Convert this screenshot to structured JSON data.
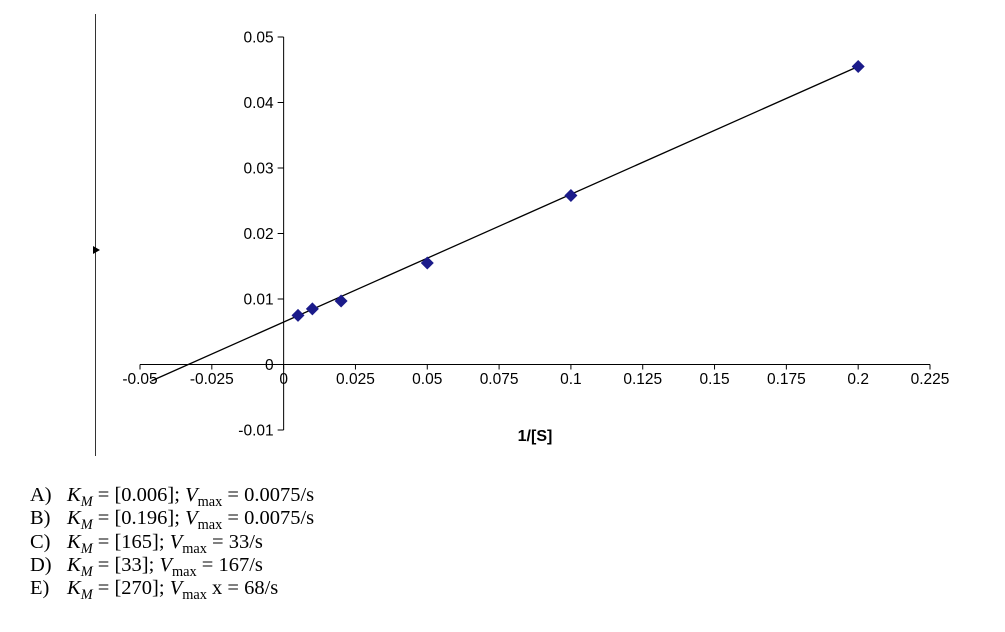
{
  "chart_data": {
    "type": "scatter",
    "title": "",
    "xlabel": "1/[S]",
    "ylabel": "",
    "x": [
      0.005,
      0.01,
      0.02,
      0.05,
      0.1,
      0.2
    ],
    "y": [
      0.0075,
      0.0085,
      0.0097,
      0.0155,
      0.0258,
      0.0455
    ],
    "trendline": {
      "x1": -0.046,
      "y1": -0.0025,
      "x2": 0.2,
      "y2": 0.0455
    },
    "xlim": [
      -0.05,
      0.225
    ],
    "ylim": [
      -0.01,
      0.05
    ],
    "xticks": [
      -0.05,
      -0.025,
      0,
      0.025,
      0.05,
      0.075,
      0.1,
      0.125,
      0.15,
      0.175,
      0.2,
      0.225
    ],
    "xtick_labels": [
      "-0.05",
      "-0.025",
      "0",
      "0.025",
      "0.05",
      "0.075",
      "0.1",
      "0.125",
      "0.15",
      "0.175",
      "0.2",
      "0.225"
    ],
    "yticks": [
      -0.01,
      0,
      0.01,
      0.02,
      0.03,
      0.04,
      0.05
    ],
    "ytick_labels": [
      "-0.01",
      "0",
      "0.01",
      "0.02",
      "0.03",
      "0.04",
      "0.05"
    ],
    "grid": false,
    "legend": "none",
    "marker": "diamond",
    "marker_color": "#1b1b8a",
    "line_color": "#000000",
    "axis_color": "#000000"
  },
  "answers": {
    "km_symbol": "K",
    "km_sub": "M",
    "v_symbol": "V",
    "v_sub": "max",
    "items": [
      {
        "letter": "A)",
        "km": " = [0.006]; ",
        "v": " = 0.0075/s"
      },
      {
        "letter": "B)",
        "km": " = [0.196]; ",
        "v": " = 0.0075/s"
      },
      {
        "letter": "C)",
        "km": " = [165]; ",
        "v": " = 33/s"
      },
      {
        "letter": "D)",
        "km": " = [33]; ",
        "v": " = 167/s"
      },
      {
        "letter": "E)",
        "km": " = [270]; ",
        "v": " x = 68/s"
      }
    ]
  }
}
